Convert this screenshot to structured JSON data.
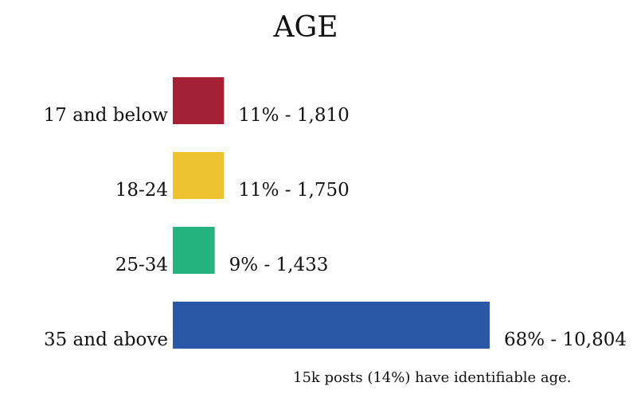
{
  "chart_data": {
    "type": "bar",
    "orientation": "horizontal",
    "title": "AGE",
    "categories": [
      "17 and below",
      "18-24",
      "25-34",
      "35 and above"
    ],
    "values": [
      11,
      11,
      9,
      68
    ],
    "counts": [
      1810,
      1750,
      1433,
      10804
    ],
    "data_labels": [
      "11% - 1,810",
      "11% - 1,750",
      "9% - 1,433",
      "68% - 10,804"
    ],
    "colors": [
      "#a32035",
      "#edc332",
      "#24b37f",
      "#2a58a6"
    ],
    "xlim": [
      0,
      68
    ],
    "grid": false,
    "legend": "none"
  },
  "footnote": "15k posts (14%) have identifiable age."
}
